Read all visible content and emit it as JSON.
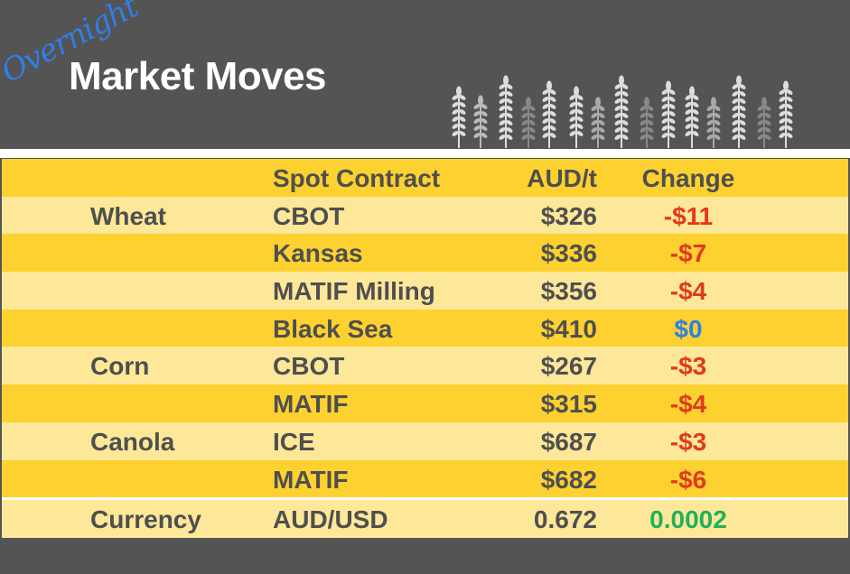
{
  "header": {
    "script_title": "Overnight",
    "title": "Market Moves",
    "decoration": "wheat-stalks-icon"
  },
  "columns": {
    "category": "",
    "contract": "Spot Contract",
    "price": "AUD/t",
    "change": "Change"
  },
  "rows": [
    {
      "category": "Wheat",
      "contract": "CBOT",
      "price": "$326",
      "change": "-$11",
      "direction": "neg"
    },
    {
      "category": "",
      "contract": "Kansas",
      "price": "$336",
      "change": "-$7",
      "direction": "neg"
    },
    {
      "category": "",
      "contract": "MATIF Milling",
      "price": "$356",
      "change": "-$4",
      "direction": "neg"
    },
    {
      "category": "",
      "contract": "Black Sea",
      "price": "$410",
      "change": "$0",
      "direction": "zero"
    },
    {
      "category": "Corn",
      "contract": "CBOT",
      "price": "$267",
      "change": "-$3",
      "direction": "neg"
    },
    {
      "category": "",
      "contract": "MATIF",
      "price": "$315",
      "change": "-$4",
      "direction": "neg"
    },
    {
      "category": "Canola",
      "contract": "ICE",
      "price": "$687",
      "change": "-$3",
      "direction": "neg"
    },
    {
      "category": "",
      "contract": "MATIF",
      "price": "$682",
      "change": "-$6",
      "direction": "neg"
    }
  ],
  "currency": {
    "category": "Currency",
    "contract": "AUD/USD",
    "price": "0.672",
    "change": "0.0002",
    "direction": "pos"
  },
  "colors": {
    "neg": "#e03a1e",
    "zero": "#2f7ee8",
    "pos": "#21b15a",
    "header_row": "#fdd12f",
    "light_row": "#fde899",
    "background": "#545454"
  }
}
